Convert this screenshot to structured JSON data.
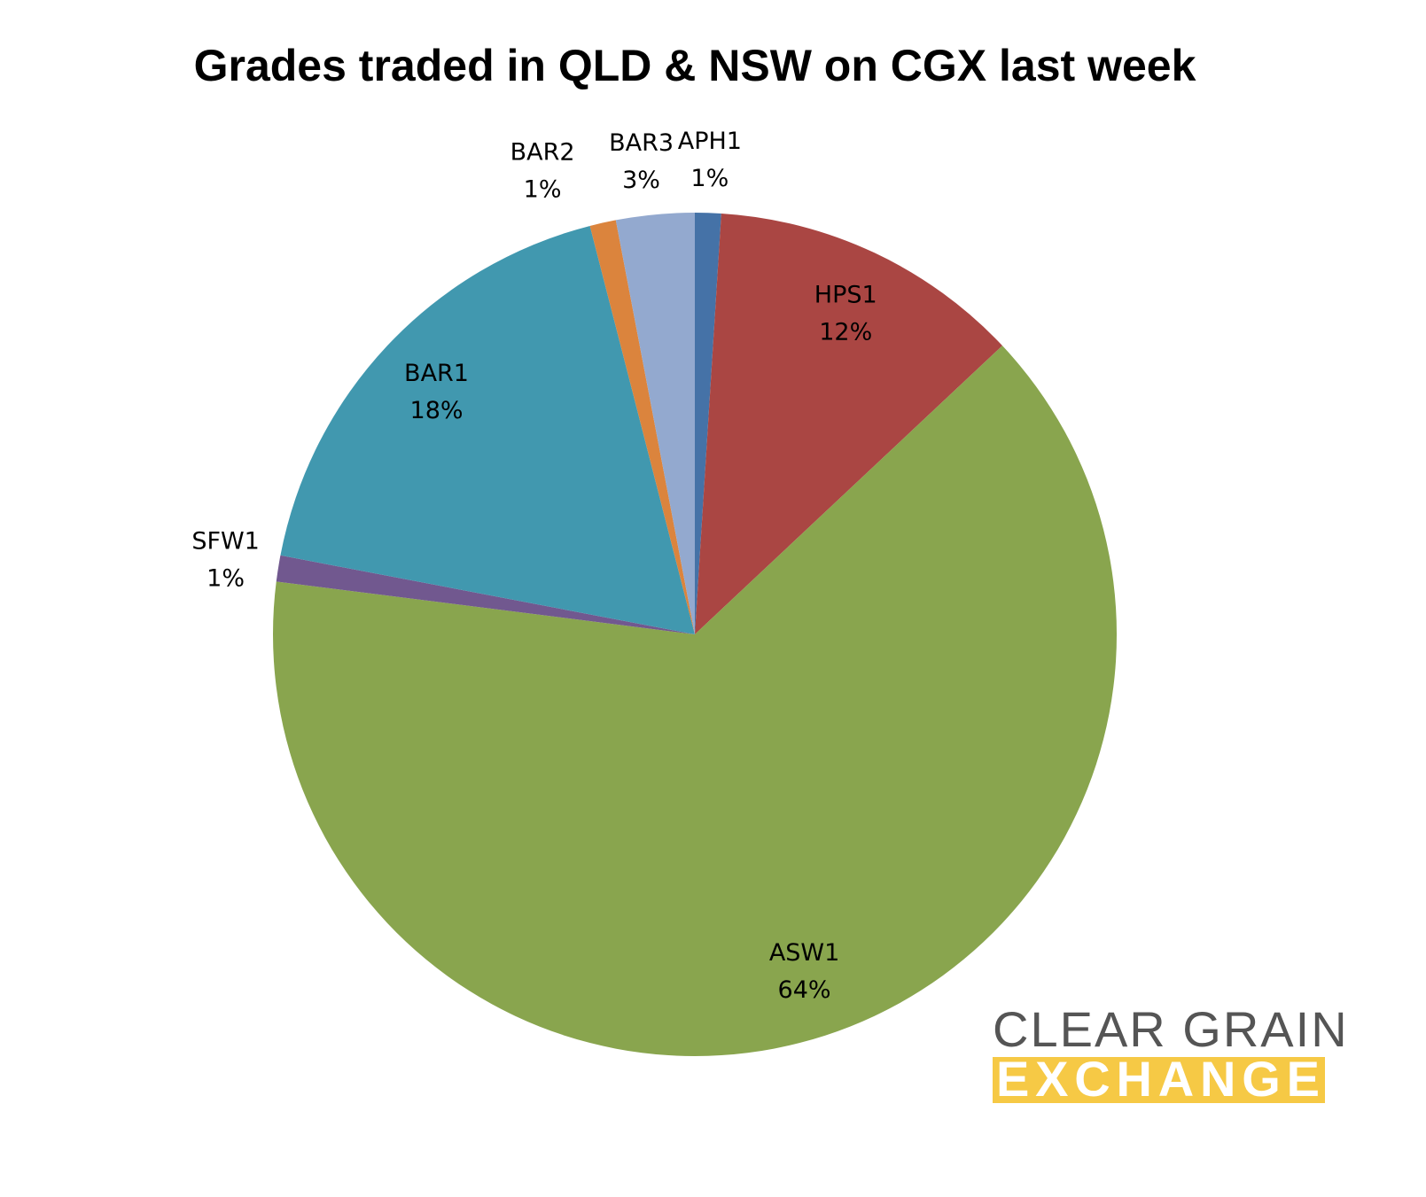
{
  "chart_data": {
    "type": "pie",
    "title": "Grades traded in QLD & NSW on CGX last week",
    "categories": [
      "APH1",
      "HPS1",
      "ASW1",
      "SFW1",
      "BAR1",
      "BAR2",
      "BAR3"
    ],
    "values": [
      1,
      12,
      64,
      1,
      18,
      1,
      3
    ],
    "value_labels": [
      "1%",
      "12%",
      "64%",
      "1%",
      "18%",
      "1%",
      "3%"
    ],
    "colors": [
      "#4572a7",
      "#aa4643",
      "#89a54e",
      "#71588f",
      "#4198af",
      "#db843d",
      "#93a9cf"
    ]
  },
  "logo": {
    "line1": "CLEAR GRAIN",
    "line2": "EXCHANGE"
  }
}
